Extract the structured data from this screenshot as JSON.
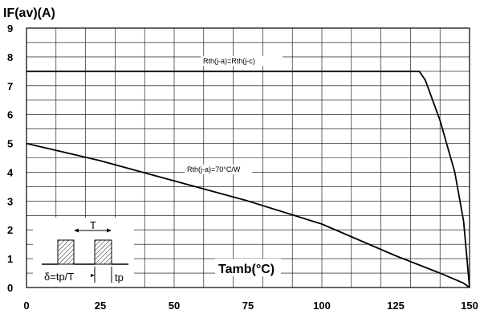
{
  "chart_data": {
    "type": "line",
    "ylabel": "IF(av)(A)",
    "xlabel": "Tamb(°C)",
    "xlim": [
      0,
      150
    ],
    "ylim": [
      0,
      9
    ],
    "x_ticks": [
      "0",
      "25",
      "50",
      "75",
      "100",
      "125",
      "150"
    ],
    "y_ticks": [
      "0",
      "1",
      "2",
      "3",
      "4",
      "5",
      "6",
      "7",
      "8",
      "9"
    ],
    "grid": true,
    "series": [
      {
        "name": "Rth(j-a)=Rth(j-c)",
        "points": [
          [
            0,
            7.5
          ],
          [
            133,
            7.5
          ],
          [
            135,
            7.2
          ],
          [
            140,
            5.8
          ],
          [
            145,
            4.0
          ],
          [
            148,
            2.3
          ],
          [
            150,
            0
          ]
        ]
      },
      {
        "name": "Rth(j-a)=70°C/W",
        "points": [
          [
            0,
            5.0
          ],
          [
            25,
            4.4
          ],
          [
            50,
            3.7
          ],
          [
            75,
            3.0
          ],
          [
            100,
            2.2
          ],
          [
            125,
            1.1
          ],
          [
            140,
            0.5
          ],
          [
            148,
            0.15
          ],
          [
            150,
            0
          ]
        ]
      }
    ],
    "inset": {
      "period_label": "T",
      "duty_label": "δ=tp/T",
      "tp_label": "tp"
    }
  }
}
